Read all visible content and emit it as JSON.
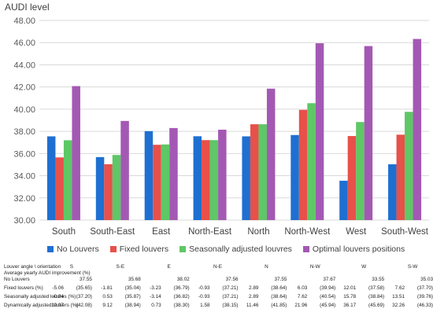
{
  "chart_data": {
    "type": "bar",
    "title": "",
    "ylabel": "AUDI level",
    "xlabel": "",
    "ylim": [
      30,
      48
    ],
    "yticks": [
      30,
      32,
      34,
      36,
      38,
      40,
      42,
      44,
      46,
      48
    ],
    "ytick_labels": [
      "30.00",
      "32.00",
      "34.00",
      "36.00",
      "38.00",
      "40.00",
      "42.00",
      "44.00",
      "46.00",
      "48.00"
    ],
    "categories": [
      "South",
      "South-East",
      "East",
      "North-East",
      "North",
      "North-West",
      "West",
      "South-West"
    ],
    "series": [
      {
        "name": "No Louvers",
        "color": "#1F6FD1",
        "values": [
          37.55,
          35.68,
          38.02,
          37.56,
          37.55,
          37.67,
          33.55,
          35.03
        ]
      },
      {
        "name": "Fixed louvers",
        "color": "#E8504A",
        "values": [
          35.65,
          35.04,
          36.79,
          37.21,
          38.64,
          39.94,
          37.58,
          37.7
        ]
      },
      {
        "name": "Seasonally adjusted louvres",
        "color": "#5EC766",
        "values": [
          37.2,
          35.87,
          36.82,
          37.21,
          38.64,
          40.54,
          38.84,
          39.76
        ]
      },
      {
        "name": "Optimal louvers positions",
        "color": "#A359B3",
        "values": [
          42.08,
          38.94,
          38.3,
          38.15,
          41.85,
          45.94,
          45.69,
          46.33
        ]
      }
    ],
    "grid": true,
    "legend_position": "bottom"
  },
  "table": {
    "header_label": "Louver angle \\ orientation",
    "orientations": [
      "S",
      "S-E",
      "E",
      "N-E",
      "N",
      "N-W",
      "W",
      "S-W"
    ],
    "subtitle": "Average yearly AUDI improvement (%)",
    "rows": [
      {
        "label": "No Louvers",
        "cells": [
          [
            "",
            "37.55"
          ],
          [
            "",
            "35.68"
          ],
          [
            "",
            "38.02"
          ],
          [
            "",
            "37.56"
          ],
          [
            "",
            "37.55"
          ],
          [
            "",
            "37.67"
          ],
          [
            "",
            "33.55"
          ],
          [
            "",
            "35.03"
          ]
        ]
      },
      {
        "label": "Fixed louvers (%)",
        "cells": [
          [
            "-5.06",
            "(35.65)"
          ],
          [
            "-1.81",
            "(35.04)"
          ],
          [
            "-3.23",
            "(36.79)"
          ],
          [
            "-0.93",
            "(37.21)"
          ],
          [
            "2.89",
            "(38.64)"
          ],
          [
            "6.03",
            "(39.94)"
          ],
          [
            "12.01",
            "(37.58)"
          ],
          [
            "7.62",
            "(37.70)"
          ]
        ]
      },
      {
        "label": "Seasonally adjusted louvres (%)",
        "cells": [
          [
            "-0.94",
            "(37.20)"
          ],
          [
            "0.53",
            "(35.87)"
          ],
          [
            "-3.14",
            "(36.82)"
          ],
          [
            "-0.93",
            "(37.21)"
          ],
          [
            "2.89",
            "(38.64)"
          ],
          [
            "7.62",
            "(40.54)"
          ],
          [
            "15.78",
            "(38.84)"
          ],
          [
            "13.51",
            "(39.76)"
          ]
        ]
      },
      {
        "label": "Dynamically adjusted louvers (%)",
        "cells": [
          [
            "12.07",
            "(42.08)"
          ],
          [
            "9.12",
            "(38.94)"
          ],
          [
            "0.73",
            "(38.30)"
          ],
          [
            "1.58",
            "(38.15)"
          ],
          [
            "11.46",
            "(41.85)"
          ],
          [
            "21.96",
            "(45.94)"
          ],
          [
            "36.17",
            "(45.69)"
          ],
          [
            "32.26",
            "(46.33)"
          ]
        ]
      }
    ]
  }
}
